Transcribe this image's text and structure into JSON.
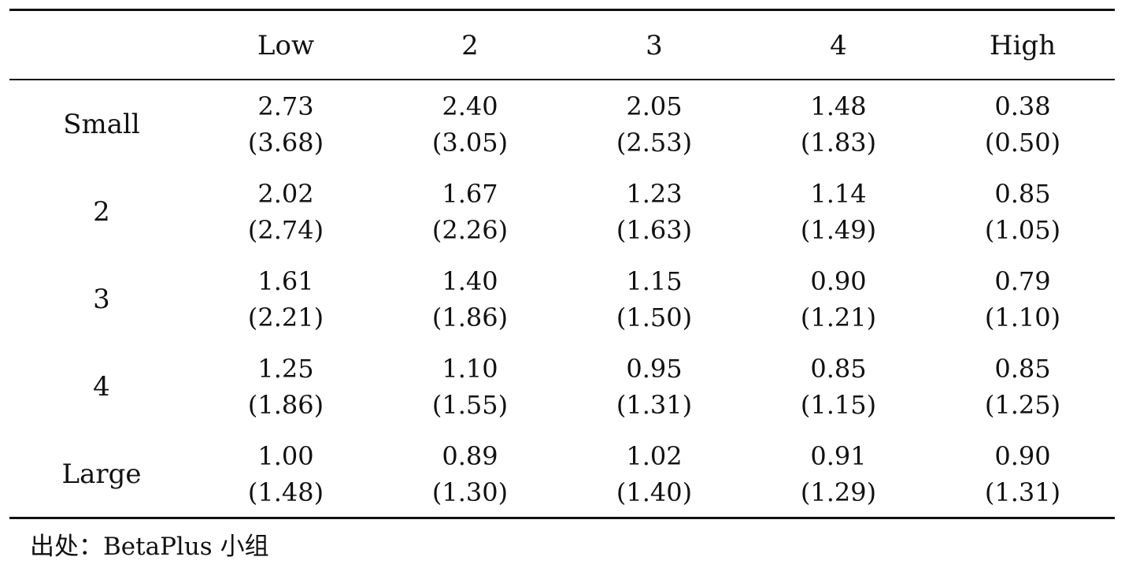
{
  "table": {
    "columns": [
      "",
      "Low",
      "2",
      "3",
      "4",
      "High"
    ],
    "rows": [
      {
        "label": "Small",
        "values": [
          "2.73",
          "2.40",
          "2.05",
          "1.48",
          "0.38"
        ],
        "t": [
          "(3.68)",
          "(3.05)",
          "(2.53)",
          "(1.83)",
          "(0.50)"
        ]
      },
      {
        "label": "2",
        "values": [
          "2.02",
          "1.67",
          "1.23",
          "1.14",
          "0.85"
        ],
        "t": [
          "(2.74)",
          "(2.26)",
          "(1.63)",
          "(1.49)",
          "(1.05)"
        ]
      },
      {
        "label": "3",
        "values": [
          "1.61",
          "1.40",
          "1.15",
          "0.90",
          "0.79"
        ],
        "t": [
          "(2.21)",
          "(1.86)",
          "(1.50)",
          "(1.21)",
          "(1.10)"
        ]
      },
      {
        "label": "4",
        "values": [
          "1.25",
          "1.10",
          "0.95",
          "0.85",
          "0.85"
        ],
        "t": [
          "(1.86)",
          "(1.55)",
          "(1.31)",
          "(1.15)",
          "(1.25)"
        ]
      },
      {
        "label": "Large",
        "values": [
          "1.00",
          "0.89",
          "1.02",
          "0.91",
          "0.90"
        ],
        "t": [
          "(1.48)",
          "(1.30)",
          "(1.40)",
          "(1.29)",
          "(1.31)"
        ]
      }
    ]
  },
  "source": "出处：BetaPlus 小组"
}
